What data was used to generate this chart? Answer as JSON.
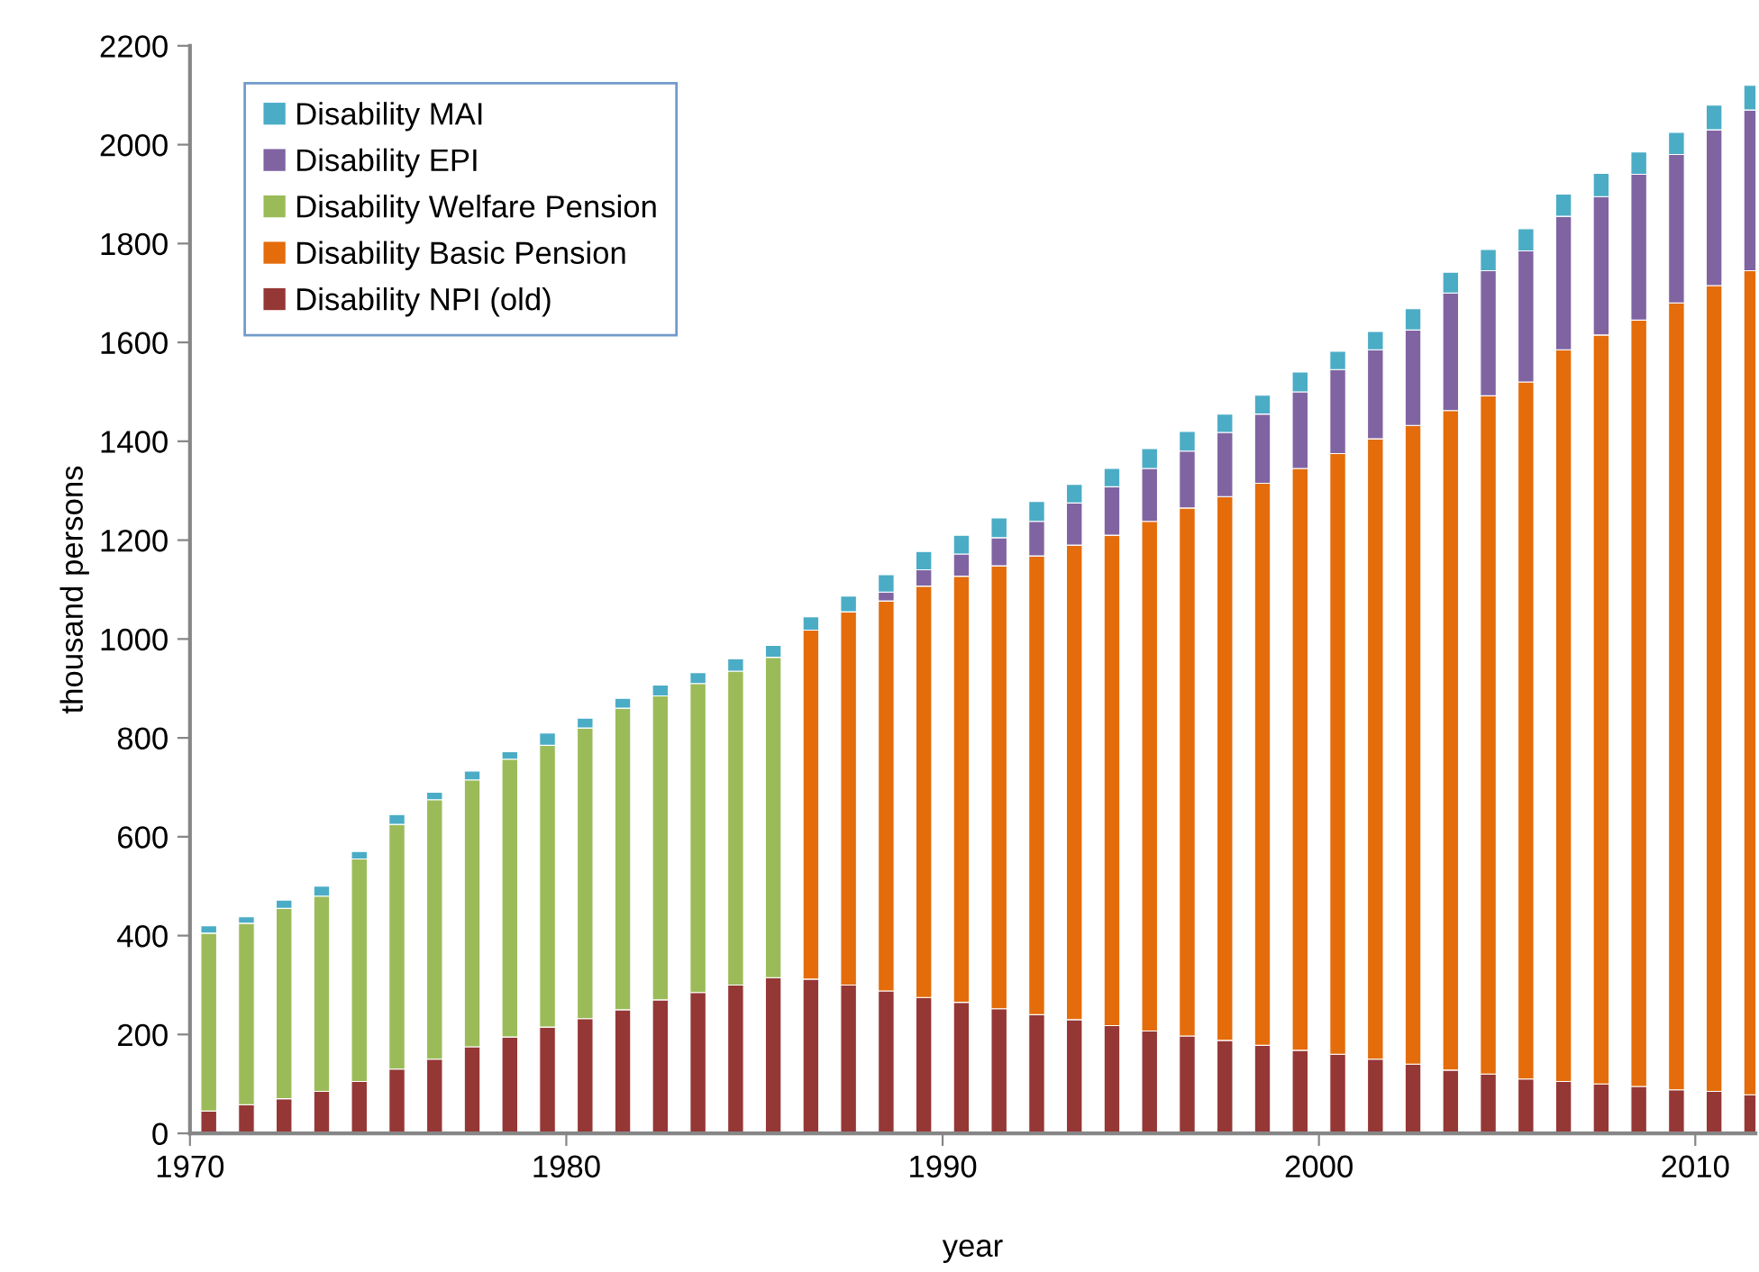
{
  "chart_data": {
    "type": "bar",
    "stacked": true,
    "xlabel": "year",
    "ylabel": "thousand persons",
    "x": [
      1970.5,
      1971.5,
      1972.5,
      1973.5,
      1974.5,
      1975.5,
      1976.5,
      1977.5,
      1978.5,
      1979.5,
      1980.5,
      1981.5,
      1982.5,
      1983.5,
      1984.5,
      1985.5,
      1986.5,
      1987.5,
      1988.5,
      1989.5,
      1990.5,
      1991.5,
      1992.5,
      1993.5,
      1994.5,
      1995.5,
      1996.5,
      1997.5,
      1998.5,
      1999.5,
      2000.5,
      2001.5,
      2002.5,
      2003.5,
      2004.5,
      2005.5,
      2006.5,
      2007.5,
      2008.5,
      2009.5,
      2010.5,
      2011.5
    ],
    "xlim": [
      1970,
      2011.6
    ],
    "xticks": [
      1970,
      1980,
      1990,
      2000,
      2010
    ],
    "ylim": [
      0,
      2200
    ],
    "yticks": [
      0,
      200,
      400,
      600,
      800,
      1000,
      1200,
      1400,
      1600,
      1800,
      2000,
      2200
    ],
    "grid": false,
    "legend": "top left",
    "series": [
      {
        "name": "Disability NPI (old)",
        "color": "#953735",
        "values": [
          45,
          58,
          70,
          85,
          105,
          130,
          150,
          175,
          195,
          215,
          232,
          250,
          270,
          285,
          300,
          315,
          312,
          300,
          288,
          275,
          265,
          252,
          240,
          230,
          218,
          207,
          197,
          188,
          178,
          168,
          160,
          150,
          140,
          128,
          120,
          110,
          105,
          100,
          95,
          88,
          85,
          78
        ]
      },
      {
        "name": "Disability Basic Pension",
        "color": "#e46c0a",
        "values": [
          null,
          null,
          null,
          null,
          null,
          null,
          null,
          null,
          null,
          null,
          null,
          null,
          null,
          null,
          null,
          null,
          706,
          755,
          789,
          832,
          862,
          896,
          928,
          960,
          992,
          1031,
          1068,
          1100,
          1137,
          1177,
          1215,
          1255,
          1292,
          1334,
          1372,
          1410,
          1480,
          1515,
          1550,
          1592,
          1630,
          1667
        ]
      },
      {
        "name": "Disability Welfare Pension",
        "color": "#9bbb59",
        "values": [
          360,
          367,
          385,
          395,
          450,
          495,
          525,
          540,
          562,
          570,
          588,
          610,
          615,
          625,
          635,
          648,
          null,
          null,
          null,
          null,
          null,
          null,
          null,
          null,
          null,
          null,
          null,
          null,
          null,
          null,
          null,
          null,
          null,
          null,
          null,
          null,
          null,
          null,
          null,
          null,
          null,
          null
        ]
      },
      {
        "name": "Disability EPI",
        "color": "#8064a2",
        "values": [
          null,
          null,
          null,
          null,
          null,
          null,
          null,
          null,
          null,
          null,
          null,
          null,
          null,
          null,
          null,
          null,
          null,
          null,
          18,
          33,
          45,
          57,
          70,
          85,
          98,
          107,
          115,
          130,
          140,
          155,
          170,
          180,
          193,
          238,
          253,
          265,
          270,
          280,
          295,
          300,
          315,
          325
        ]
      },
      {
        "name": "Disability MAI",
        "color": "#4bacc6",
        "values": [
          15,
          13,
          17,
          20,
          15,
          20,
          15,
          18,
          15,
          25,
          20,
          20,
          22,
          22,
          25,
          24,
          27,
          32,
          35,
          37,
          38,
          40,
          40,
          38,
          37,
          40,
          40,
          37,
          38,
          40,
          37,
          37,
          43,
          42,
          43,
          45,
          45,
          47,
          45,
          45,
          50,
          50
        ]
      }
    ]
  }
}
